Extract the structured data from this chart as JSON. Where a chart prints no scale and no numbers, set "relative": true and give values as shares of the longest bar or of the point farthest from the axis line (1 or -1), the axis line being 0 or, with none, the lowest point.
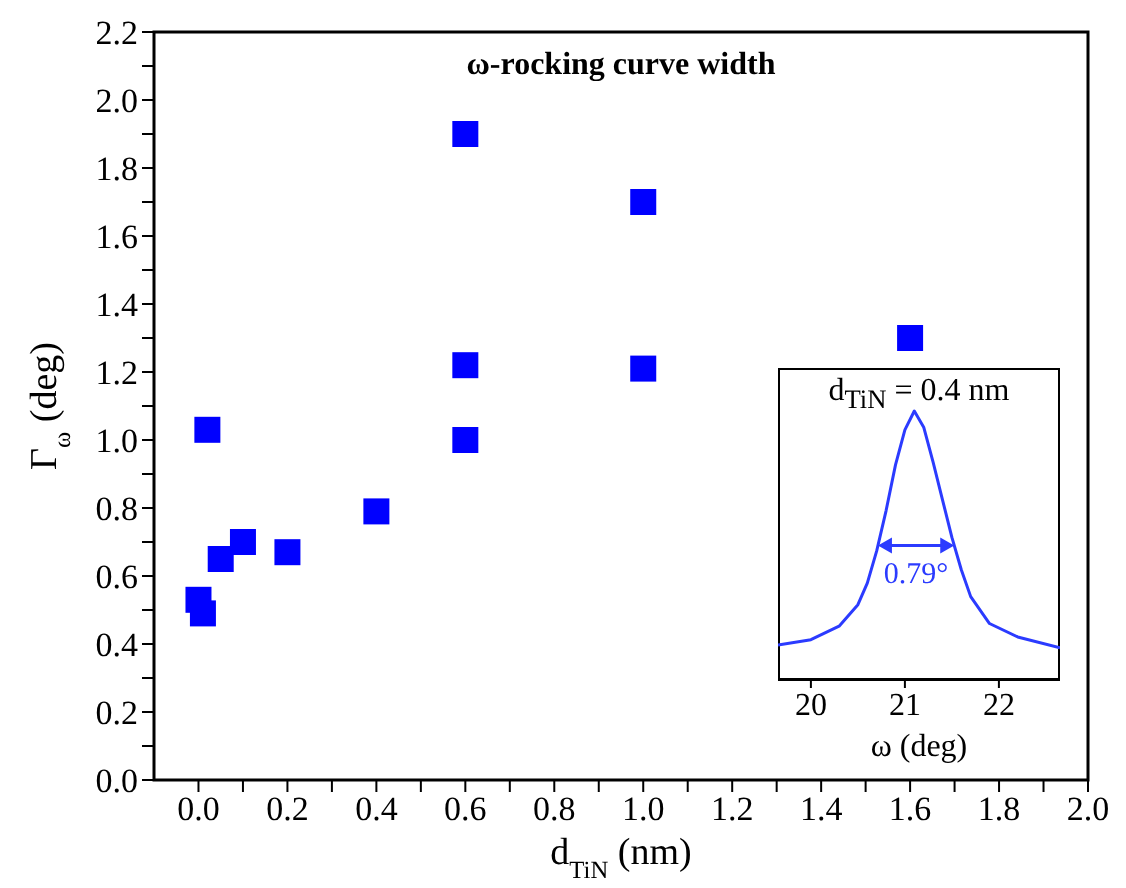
{
  "chart_data": [
    {
      "type": "scatter",
      "title": "ω-rocking curve width",
      "xlabel": "d$_{TiN}$ (nm)",
      "ylabel": "Γ$_{ω}$ (deg)",
      "x": [
        0,
        0.01,
        0.02,
        0.05,
        0.1,
        0.2,
        0.4,
        0.6,
        0.6,
        0.6,
        1.0,
        1.0,
        1.6
      ],
      "values": [
        0.53,
        0.49,
        1.03,
        0.65,
        0.7,
        0.67,
        0.79,
        1.9,
        1.22,
        1.0,
        1.7,
        1.21,
        1.3
      ],
      "color": "#0000ff",
      "marker": "square",
      "xlim": [
        -0.1,
        2.0
      ],
      "ylim": [
        0,
        2.2
      ],
      "xticks": [
        {
          "value": 0,
          "label": "0.0"
        },
        {
          "value": 0.1,
          "label": null
        },
        0.2,
        {
          "value": 0.3,
          "label": null
        },
        0.4,
        {
          "value": 0.5,
          "label": null
        },
        0.6,
        {
          "value": 0.7,
          "label": null
        },
        0.8,
        {
          "value": 0.9,
          "label": null
        },
        {
          "value": 1,
          "label": "1.0"
        },
        {
          "value": 1.1,
          "label": null
        },
        1.2,
        {
          "value": 1.3,
          "label": null
        },
        1.4,
        {
          "value": 1.5,
          "label": null
        },
        1.6,
        {
          "value": 1.7,
          "label": null
        },
        1.8,
        {
          "value": 1.9,
          "label": null
        },
        {
          "value": 2,
          "label": "2.0"
        }
      ],
      "yticks": [
        {
          "value": 0,
          "label": "0.0"
        },
        {
          "value": 0.1,
          "label": null
        },
        0.2,
        {
          "value": 0.3,
          "label": null
        },
        0.4,
        {
          "value": 0.5,
          "label": null
        },
        0.6,
        {
          "value": 0.7,
          "label": null
        },
        0.8,
        {
          "value": 0.9,
          "label": null
        },
        {
          "value": 1,
          "label": "1.0"
        },
        {
          "value": 1.1,
          "label": null
        },
        1.2,
        {
          "value": 1.3,
          "label": null
        },
        1.4,
        {
          "value": 1.5,
          "label": null
        },
        1.6,
        {
          "value": 1.7,
          "label": null
        },
        1.8,
        {
          "value": 1.9,
          "label": null
        },
        {
          "value": 2,
          "label": "2.0"
        },
        {
          "value": 2.1,
          "label": null
        },
        2.2
      ]
    },
    {
      "type": "line",
      "title": "d$_{TiN}$ = 0.4 nm",
      "xlabel": "ω (deg)",
      "x": [
        19.65,
        20.0,
        20.3,
        20.5,
        20.6,
        20.7,
        20.8,
        20.9,
        21.0,
        21.1,
        21.2,
        21.3,
        21.4,
        21.5,
        21.6,
        21.7,
        21.9,
        22.2,
        22.65
      ],
      "values": [
        0.13,
        0.15,
        0.2,
        0.28,
        0.36,
        0.48,
        0.63,
        0.8,
        0.93,
        1.0,
        0.94,
        0.81,
        0.67,
        0.53,
        0.41,
        0.31,
        0.21,
        0.16,
        0.12
      ],
      "color": "#2b3bff",
      "relative": true,
      "marker": "none",
      "line_style": "solid",
      "xlim": [
        19.65,
        22.65
      ],
      "xticks": [
        20,
        21,
        22
      ],
      "annotations": [
        "0.79°"
      ]
    }
  ]
}
